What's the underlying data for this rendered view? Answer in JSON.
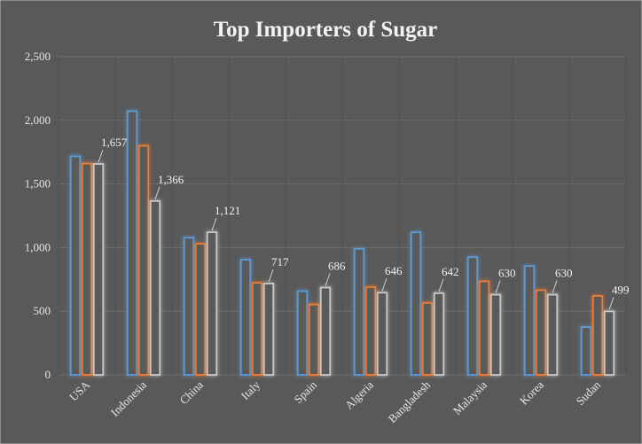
{
  "chart_data": {
    "type": "bar",
    "title": "Top Importers of Sugar",
    "categories": [
      "USA",
      "Indonesia",
      "China",
      "Italy",
      "Spain",
      "Algeria",
      "Bangladesh",
      "Malaysia",
      "Korea",
      "Sudan"
    ],
    "series": [
      {
        "color": "#5b9bd5",
        "values": [
          1717,
          2072,
          1078,
          905,
          658,
          990,
          1120,
          925,
          855,
          375
        ]
      },
      {
        "color": "#ed7d31",
        "values": [
          1660,
          1800,
          1030,
          723,
          553,
          690,
          565,
          735,
          665,
          620
        ]
      },
      {
        "color": "#c9c9c9",
        "values": [
          1657,
          1366,
          1121,
          717,
          686,
          646,
          642,
          630,
          630,
          499
        ]
      }
    ],
    "data_labels": [
      "1,657",
      "1,366",
      "1,121",
      "717",
      "686",
      "646",
      "642",
      "630",
      "630",
      "499"
    ],
    "labeled_series": 2,
    "yticks": [
      "0",
      "500",
      "1,000",
      "1,500",
      "2,000",
      "2,500"
    ],
    "ylim": [
      0,
      2500
    ],
    "grid": true,
    "legend": "none",
    "background_color": "#5a5a5a"
  }
}
